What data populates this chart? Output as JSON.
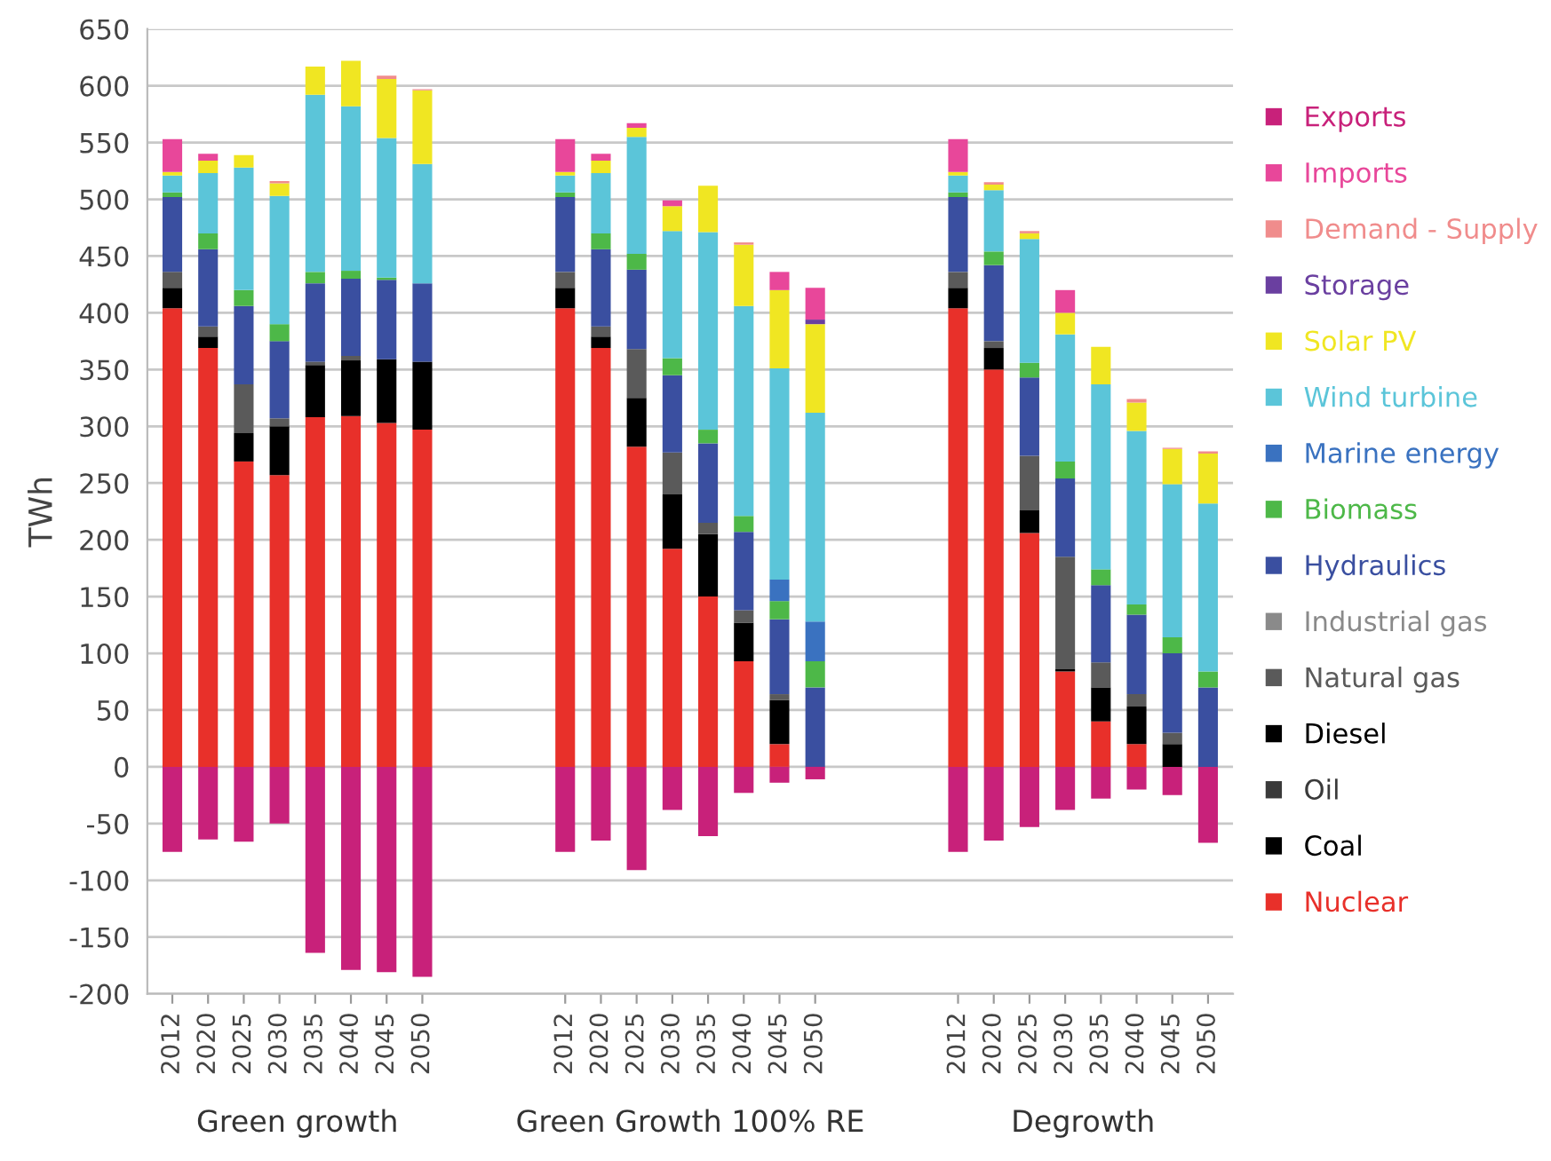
{
  "chart_data": {
    "type": "bar",
    "stacked": true,
    "ylabel": "TWh",
    "categories": [
      "2012",
      "2020",
      "2025",
      "2030",
      "2035",
      "2040",
      "2045",
      "2050",
      null,
      null,
      null,
      "2012",
      "2020",
      "2025",
      "2030",
      "2035",
      "2040",
      "2045",
      "2050",
      null,
      null,
      null,
      "2012",
      "2020",
      "2025",
      "2030",
      "2035",
      "2040",
      "2045",
      "2050"
    ],
    "annotations": [
      "Green growth",
      "Green Growth 100% RE",
      "Degrowth"
    ],
    "ylim": [
      -200,
      650
    ],
    "yticks": [
      -200,
      -150,
      -100,
      -50,
      0,
      50,
      100,
      150,
      200,
      250,
      300,
      350,
      400,
      450,
      500,
      550,
      600,
      650
    ],
    "grid": "y",
    "legend": "right",
    "series": [
      {
        "name": "Nuclear",
        "color": "#e8302a",
        "values": [
          404,
          369,
          269,
          257,
          308,
          309,
          303,
          297,
          null,
          null,
          null,
          404,
          369,
          282,
          192,
          150,
          93,
          20,
          0,
          null,
          null,
          null,
          404,
          350,
          206,
          84,
          40,
          20,
          0,
          0
        ]
      },
      {
        "name": "Coal",
        "color": "#000000",
        "values": [
          18,
          10,
          25,
          43,
          46,
          49,
          56,
          60,
          null,
          null,
          null,
          18,
          10,
          43,
          48,
          55,
          34,
          39,
          0,
          null,
          null,
          null,
          18,
          19,
          20,
          2,
          30,
          33,
          20,
          0
        ]
      },
      {
        "name": "Oil",
        "color": "#3a3a3a",
        "values": [
          0,
          0,
          0,
          0,
          0,
          0,
          0,
          0,
          null,
          null,
          null,
          0,
          0,
          0,
          0,
          0,
          0,
          0,
          0,
          null,
          null,
          null,
          0,
          0,
          0,
          0,
          0,
          0,
          0,
          0
        ]
      },
      {
        "name": "Diesel",
        "color": "#000000",
        "values": [
          0,
          0,
          0,
          0,
          0,
          0,
          0,
          0,
          null,
          null,
          null,
          0,
          0,
          0,
          0,
          0,
          0,
          0,
          0,
          null,
          null,
          null,
          0,
          0,
          0,
          0,
          0,
          0,
          0,
          0
        ]
      },
      {
        "name": "Natural gas",
        "color": "#5a5a5a",
        "values": [
          14,
          9,
          43,
          7,
          3,
          4,
          0,
          0,
          null,
          null,
          null,
          14,
          9,
          43,
          37,
          10,
          11,
          5,
          0,
          null,
          null,
          null,
          14,
          6,
          48,
          99,
          22,
          11,
          10,
          0
        ]
      },
      {
        "name": "Industrial gas",
        "color": "#8a8a8a",
        "values": [
          0,
          0,
          0,
          0,
          0,
          0,
          0,
          0,
          null,
          null,
          null,
          0,
          0,
          0,
          0,
          0,
          0,
          0,
          0,
          null,
          null,
          null,
          0,
          0,
          0,
          0,
          0,
          0,
          0,
          0
        ]
      },
      {
        "name": "Hydraulics",
        "color": "#3a4fa0",
        "values": [
          66,
          68,
          69,
          68,
          69,
          68,
          70,
          69,
          null,
          null,
          null,
          66,
          68,
          70,
          68,
          70,
          69,
          66,
          70,
          null,
          null,
          null,
          66,
          67,
          69,
          69,
          68,
          70,
          70,
          70
        ]
      },
      {
        "name": "Biomass",
        "color": "#4db848",
        "values": [
          4,
          14,
          14,
          15,
          10,
          7,
          2,
          0,
          null,
          null,
          null,
          4,
          14,
          14,
          15,
          12,
          14,
          16,
          23,
          null,
          null,
          null,
          4,
          12,
          13,
          15,
          14,
          9,
          14,
          14
        ]
      },
      {
        "name": "Marine energy",
        "color": "#3a72c0",
        "values": [
          0,
          0,
          0,
          0,
          0,
          0,
          0,
          0,
          null,
          null,
          null,
          0,
          0,
          0,
          0,
          0,
          0,
          19,
          35,
          null,
          null,
          null,
          0,
          0,
          0,
          0,
          0,
          0,
          0,
          0
        ]
      },
      {
        "name": "Wind turbine",
        "color": "#5bc5d9",
        "values": [
          15,
          53,
          108,
          113,
          156,
          145,
          123,
          105,
          null,
          null,
          null,
          15,
          53,
          103,
          112,
          174,
          185,
          186,
          184,
          null,
          null,
          null,
          15,
          54,
          109,
          112,
          163,
          153,
          135,
          148
        ]
      },
      {
        "name": "Solar PV",
        "color": "#f0e622",
        "values": [
          3,
          11,
          11,
          11,
          25,
          40,
          52,
          65,
          null,
          null,
          null,
          3,
          11,
          8,
          22,
          41,
          54,
          69,
          78,
          null,
          null,
          null,
          3,
          5,
          5,
          19,
          33,
          25,
          31,
          44
        ]
      },
      {
        "name": "Storage",
        "color": "#6a3fa0",
        "values": [
          0,
          0,
          0,
          0,
          0,
          0,
          0,
          0,
          null,
          null,
          null,
          0,
          0,
          0,
          0,
          0,
          0,
          0,
          4,
          null,
          null,
          null,
          0,
          0,
          0,
          0,
          0,
          0,
          0,
          0
        ]
      },
      {
        "name": "Demand - Supply",
        "color": "#f08c8c",
        "values": [
          0,
          0,
          0,
          2,
          0,
          0,
          3,
          1,
          null,
          null,
          null,
          0,
          0,
          0,
          0,
          0,
          2,
          0,
          0,
          null,
          null,
          null,
          0,
          2,
          2,
          0,
          0,
          3,
          1,
          2
        ]
      },
      {
        "name": "Imports",
        "color": "#e8479a",
        "values": [
          29,
          6,
          0,
          0,
          0,
          0,
          0,
          0,
          null,
          null,
          null,
          29,
          6,
          4,
          5,
          0,
          0,
          16,
          28,
          null,
          null,
          null,
          29,
          0,
          0,
          20,
          0,
          0,
          0,
          0
        ]
      },
      {
        "name": "Exports",
        "color": "#c8217a",
        "values": [
          -75,
          -64,
          -66,
          -50,
          -164,
          -179,
          -181,
          -185,
          null,
          null,
          null,
          -75,
          -65,
          -91,
          -38,
          -61,
          -23,
          -14,
          -11,
          null,
          null,
          null,
          -75,
          -65,
          -53,
          -38,
          -28,
          -20,
          -25,
          -67
        ]
      }
    ]
  }
}
